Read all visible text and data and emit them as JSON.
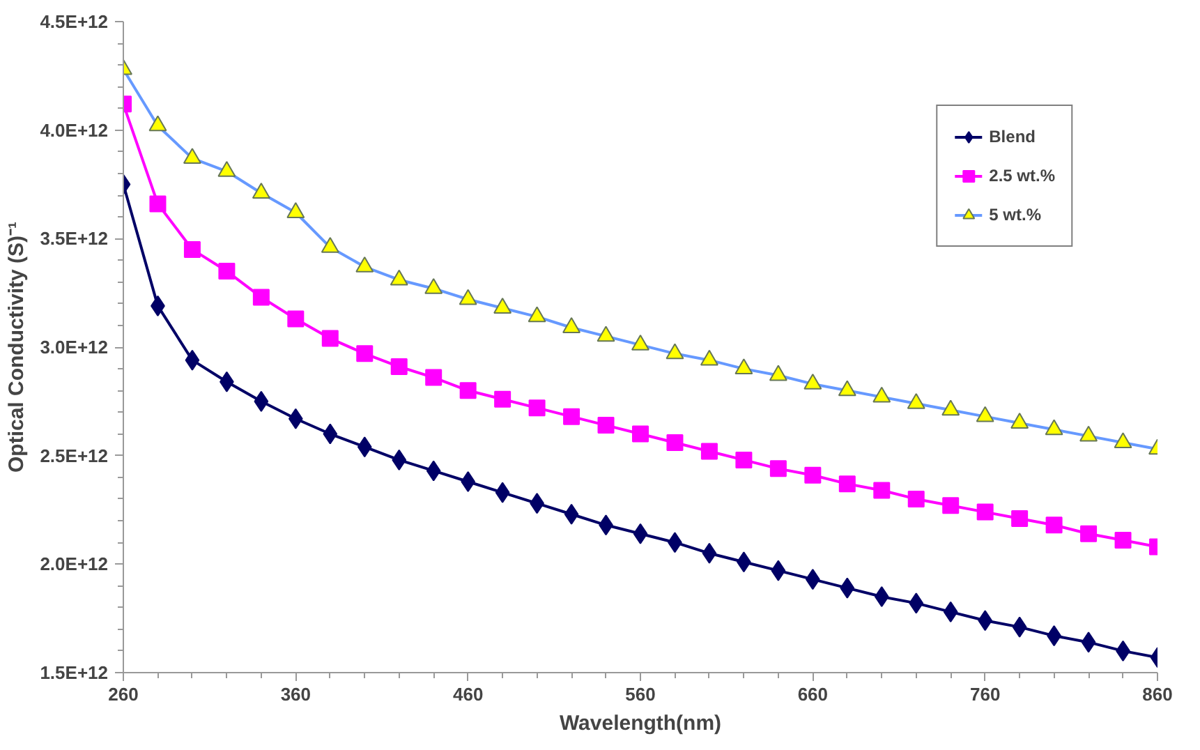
{
  "chart_data": {
    "type": "line",
    "xlabel": "Wavelength(nm)",
    "ylabel": "Optical Conductivity (S)⁻¹",
    "x": [
      260,
      280,
      300,
      320,
      340,
      360,
      380,
      400,
      420,
      440,
      460,
      480,
      500,
      520,
      540,
      560,
      580,
      600,
      620,
      640,
      660,
      680,
      700,
      720,
      740,
      760,
      780,
      800,
      820,
      840,
      860
    ],
    "series": [
      {
        "name": "Blend",
        "color": "#000066",
        "marker": "diamond",
        "values": [
          3750000000000.0,
          3190000000000.0,
          2940000000000.0,
          2840000000000.0,
          2750000000000.0,
          2670000000000.0,
          2600000000000.0,
          2540000000000.0,
          2480000000000.0,
          2430000000000.0,
          2380000000000.0,
          2330000000000.0,
          2280000000000.0,
          2230000000000.0,
          2180000000000.0,
          2140000000000.0,
          2100000000000.0,
          2050000000000.0,
          2010000000000.0,
          1970000000000.0,
          1930000000000.0,
          1890000000000.0,
          1850000000000.0,
          1820000000000.0,
          1780000000000.0,
          1740000000000.0,
          1710000000000.0,
          1670000000000.0,
          1640000000000.0,
          1600000000000.0,
          1570000000000.0
        ]
      },
      {
        "name": "2.5 wt.%",
        "color": "#ff00ff",
        "marker": "square",
        "values": [
          4120000000000.0,
          3660000000000.0,
          3450000000000.0,
          3350000000000.0,
          3230000000000.0,
          3130000000000.0,
          3040000000000.0,
          2970000000000.0,
          2910000000000.0,
          2860000000000.0,
          2800000000000.0,
          2760000000000.0,
          2720000000000.0,
          2680000000000.0,
          2640000000000.0,
          2600000000000.0,
          2560000000000.0,
          2520000000000.0,
          2480000000000.0,
          2440000000000.0,
          2410000000000.0,
          2370000000000.0,
          2340000000000.0,
          2300000000000.0,
          2270000000000.0,
          2240000000000.0,
          2210000000000.0,
          2180000000000.0,
          2140000000000.0,
          2110000000000.0,
          2080000000000.0
        ]
      },
      {
        "name": "5 wt.%",
        "color": "#6699ff",
        "marker": "triangle",
        "colors": [
          "#ffff00",
          "#ffff00",
          "#ffff00",
          "#ffff00",
          "#ffff00",
          "#ffff00",
          "#ffff00",
          "#ffff00",
          "#ffff00",
          "#ffff00",
          "#ffff00",
          "#ffff00",
          "#ffff00",
          "#ffff00",
          "#ffff00",
          "#ffff00",
          "#ffff00",
          "#ffff00",
          "#ffff00",
          "#ffff00",
          "#ffff00",
          "#ffff00",
          "#ffff00",
          "#ffff00",
          "#ffff00",
          "#ffff00",
          "#ffff00",
          "#ffff00",
          "#ffff00",
          "#ffff00",
          "#ffff00"
        ],
        "values": [
          4280000000000.0,
          4020000000000.0,
          3870000000000.0,
          3810000000000.0,
          3710000000000.0,
          3620000000000.0,
          3460000000000.0,
          3370000000000.0,
          3310000000000.0,
          3270000000000.0,
          3220000000000.0,
          3180000000000.0,
          3140000000000.0,
          3090000000000.0,
          3050000000000.0,
          3010000000000.0,
          2970000000000.0,
          2940000000000.0,
          2900000000000.0,
          2870000000000.0,
          2830000000000.0,
          2800000000000.0,
          2770000000000.0,
          2740000000000.0,
          2710000000000.0,
          2680000000000.0,
          2650000000000.0,
          2620000000000.0,
          2590000000000.0,
          2560000000000.0,
          2530000000000.0
        ]
      }
    ],
    "xlim": [
      260,
      860
    ],
    "xticks": [
      260,
      360,
      460,
      560,
      660,
      760,
      860
    ],
    "ylim": [
      1500000000000.0,
      4500000000000.0
    ],
    "yticks": [
      {
        "value": 1500000000000.0,
        "label": "1.5E+12"
      },
      {
        "value": 2000000000000.0,
        "label": "2.0E+12"
      },
      {
        "value": 2500000000000.0,
        "label": "2.5E+12"
      },
      {
        "value": 3000000000000.0,
        "label": "3.0E+12"
      },
      {
        "value": 3500000000000.0,
        "label": "3.5E+12"
      },
      {
        "value": 4000000000000.0,
        "label": "4.0E+12"
      },
      {
        "value": 4500000000000.0,
        "label": "4.5E+12"
      }
    ],
    "grid": false,
    "legend": "top right",
    "line_style": "solid"
  }
}
